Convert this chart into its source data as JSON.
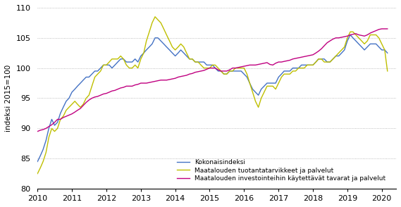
{
  "title": "",
  "ylabel": "indeksi 2015=100",
  "ylim": [
    80,
    110
  ],
  "yticks": [
    80,
    85,
    90,
    95,
    100,
    105,
    110
  ],
  "colors": {
    "kokonaisindeksi": "#4472C4",
    "tuotantatarvikkeet": "#BFBF00",
    "investointi": "#C00080"
  },
  "legend_labels": [
    "Kokonaisindeksi",
    "Maatalouden tuotantatarvikkeet ja palvelut",
    "Maatalouden investointeihin käytettävät tavarat ja palvelut"
  ],
  "kokonaisindeksi": [
    84.5,
    85.5,
    86.5,
    88.0,
    90.0,
    91.5,
    90.5,
    91.0,
    92.5,
    93.5,
    94.5,
    95.0,
    96.0,
    96.5,
    97.0,
    97.5,
    98.0,
    98.5,
    98.5,
    99.0,
    99.5,
    99.5,
    100.0,
    100.5,
    100.5,
    100.5,
    100.0,
    100.5,
    101.0,
    101.5,
    101.5,
    101.0,
    101.0,
    101.0,
    101.5,
    101.0,
    102.0,
    102.5,
    103.0,
    103.5,
    104.0,
    105.0,
    105.0,
    104.5,
    104.0,
    103.5,
    103.0,
    102.5,
    102.0,
    102.5,
    103.0,
    102.5,
    102.0,
    101.5,
    101.5,
    101.0,
    101.0,
    101.0,
    101.0,
    100.5,
    100.5,
    100.5,
    100.0,
    99.5,
    99.5,
    99.0,
    99.0,
    99.5,
    99.5,
    99.5,
    99.5,
    99.5,
    99.0,
    98.5,
    97.5,
    96.5,
    96.0,
    95.5,
    96.5,
    97.0,
    97.5,
    97.5,
    97.5,
    97.5,
    98.5,
    99.0,
    99.5,
    99.5,
    99.5,
    100.0,
    100.0,
    100.0,
    100.5,
    100.5,
    100.5,
    100.5,
    100.5,
    101.0,
    101.5,
    101.5,
    101.5,
    101.0,
    101.0,
    101.5,
    102.0,
    102.0,
    102.5,
    103.0,
    104.5,
    105.5,
    105.0,
    104.5,
    104.0,
    103.5,
    103.0,
    103.5,
    104.0,
    104.0,
    104.0,
    103.5,
    103.0,
    103.0,
    102.5
  ],
  "tuotantatarvikkeet": [
    82.5,
    83.5,
    84.5,
    86.0,
    88.5,
    90.0,
    89.5,
    90.0,
    91.5,
    92.0,
    93.0,
    93.5,
    94.0,
    94.5,
    94.0,
    93.5,
    94.0,
    95.0,
    95.5,
    97.0,
    98.5,
    99.0,
    99.5,
    100.5,
    100.5,
    101.0,
    101.5,
    101.5,
    101.5,
    102.0,
    101.5,
    100.5,
    100.0,
    100.0,
    100.5,
    100.0,
    101.5,
    102.5,
    104.5,
    106.0,
    107.5,
    108.5,
    108.0,
    107.5,
    106.5,
    105.5,
    104.5,
    103.5,
    103.0,
    103.5,
    104.0,
    103.5,
    102.5,
    101.5,
    101.5,
    101.0,
    101.0,
    100.5,
    100.0,
    100.0,
    100.0,
    100.5,
    100.5,
    100.0,
    99.5,
    99.0,
    99.0,
    99.5,
    99.5,
    100.0,
    100.0,
    100.0,
    100.0,
    99.0,
    97.5,
    96.0,
    94.5,
    93.5,
    95.0,
    96.0,
    97.0,
    97.0,
    97.0,
    96.5,
    97.5,
    98.5,
    99.0,
    99.0,
    99.0,
    99.5,
    99.5,
    100.0,
    100.0,
    100.0,
    100.5,
    100.5,
    100.5,
    101.0,
    101.5,
    101.5,
    101.0,
    101.0,
    101.0,
    101.5,
    102.0,
    102.5,
    103.0,
    103.5,
    105.0,
    106.0,
    106.0,
    105.5,
    105.0,
    104.5,
    104.0,
    104.5,
    105.5,
    105.5,
    105.5,
    105.0,
    104.0,
    103.0,
    99.5
  ],
  "investointi": [
    89.5,
    89.7,
    89.8,
    90.0,
    90.3,
    90.6,
    91.0,
    91.5,
    91.5,
    91.8,
    92.0,
    92.2,
    92.4,
    92.7,
    93.0,
    93.3,
    93.8,
    94.3,
    94.7,
    95.0,
    95.2,
    95.3,
    95.5,
    95.7,
    95.8,
    96.0,
    96.2,
    96.3,
    96.5,
    96.7,
    96.8,
    97.0,
    97.0,
    97.0,
    97.2,
    97.3,
    97.5,
    97.5,
    97.5,
    97.6,
    97.7,
    97.8,
    97.9,
    98.0,
    98.0,
    98.0,
    98.1,
    98.2,
    98.3,
    98.5,
    98.6,
    98.7,
    98.8,
    99.0,
    99.1,
    99.3,
    99.4,
    99.5,
    99.6,
    99.8,
    100.0,
    100.0,
    100.0,
    99.7,
    99.5,
    99.5,
    99.5,
    99.7,
    100.0,
    100.0,
    100.1,
    100.2,
    100.3,
    100.4,
    100.5,
    100.5,
    100.5,
    100.6,
    100.7,
    100.8,
    100.9,
    100.6,
    100.5,
    100.8,
    101.0,
    101.0,
    101.1,
    101.2,
    101.3,
    101.5,
    101.6,
    101.7,
    101.8,
    101.9,
    102.0,
    102.1,
    102.2,
    102.5,
    102.8,
    103.2,
    103.7,
    104.2,
    104.5,
    104.8,
    105.0,
    105.0,
    105.1,
    105.2,
    105.3,
    105.5,
    105.6,
    105.7,
    105.5,
    105.4,
    105.3,
    105.5,
    105.8,
    106.0,
    106.2,
    106.4,
    106.5,
    106.5,
    106.5
  ]
}
